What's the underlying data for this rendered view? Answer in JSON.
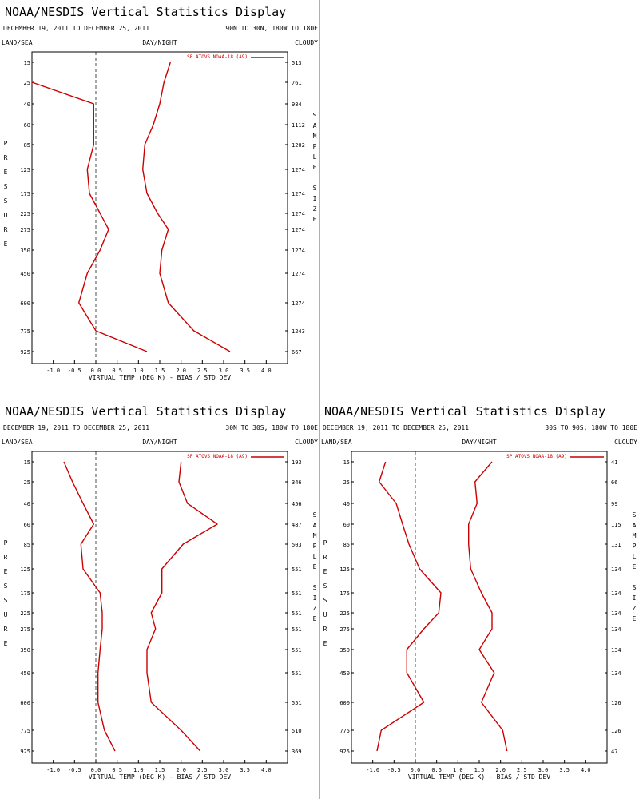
{
  "chart_data": [
    {
      "type": "line",
      "title": "NOAA/NESDIS Vertical Statistics Display",
      "date_range": "DECEMBER 19, 2011 TO DECEMBER 25, 2011",
      "region": "90N TO 30N, 180W TO 180E",
      "left_header": "LAND/SEA",
      "center_header": "DAY/NIGHT",
      "right_header": "CLOUDY",
      "xlabel": "VIRTUAL TEMP (DEG K) - BIAS / STD DEV",
      "ylabel_left": "PRESSURE",
      "ylabel_right": "SAMPLE SIZE",
      "xlim": [
        -1.5,
        4.5
      ],
      "x_ticks": [
        "-1.0",
        "-0.5",
        "0.0",
        "0.5",
        "1.0",
        "1.5",
        "2.0",
        "2.5",
        "3.0",
        "3.5",
        "4.0"
      ],
      "pressure_levels": [
        "15",
        "25",
        "40",
        "60",
        "85",
        "125",
        "175",
        "225",
        "275",
        "350",
        "450",
        "600",
        "775",
        "925"
      ],
      "sample_sizes": [
        "513",
        "761",
        "984",
        "1112",
        "1202",
        "1274",
        "1274",
        "1274",
        "1274",
        "1274",
        "1274",
        "1274",
        "1243",
        "667"
      ],
      "legend": "SP ATOVS NOAA-18 (A9)",
      "series": [
        {
          "name": "BIAS",
          "values": [
            null,
            -1.5,
            -0.05,
            -0.05,
            -0.05,
            -0.2,
            -0.15,
            0.1,
            0.3,
            0.1,
            -0.2,
            -0.4,
            0.0,
            1.2
          ]
        },
        {
          "name": "STD DEV",
          "values": [
            1.75,
            1.6,
            1.5,
            1.35,
            1.15,
            1.1,
            1.2,
            1.45,
            1.7,
            1.55,
            1.5,
            1.7,
            2.3,
            3.15
          ]
        }
      ]
    },
    {
      "type": "line",
      "title": "NOAA/NESDIS Vertical Statistics Display",
      "date_range": "DECEMBER 19, 2011 TO DECEMBER 25, 2011",
      "region": "30N TO 30S, 180W TO 180E",
      "left_header": "LAND/SEA",
      "center_header": "DAY/NIGHT",
      "right_header": "CLOUDY",
      "xlabel": "VIRTUAL TEMP (DEG K) - BIAS / STD DEV",
      "ylabel_left": "PRESSURE",
      "ylabel_right": "SAMPLE SIZE",
      "xlim": [
        -1.5,
        4.5
      ],
      "x_ticks": [
        "-1.0",
        "-0.5",
        "0.0",
        "0.5",
        "1.0",
        "1.5",
        "2.0",
        "2.5",
        "3.0",
        "3.5",
        "4.0"
      ],
      "pressure_levels": [
        "15",
        "25",
        "40",
        "60",
        "85",
        "125",
        "175",
        "225",
        "275",
        "350",
        "450",
        "600",
        "775",
        "925"
      ],
      "sample_sizes": [
        "193",
        "346",
        "456",
        "487",
        "503",
        "551",
        "551",
        "551",
        "551",
        "551",
        "551",
        "551",
        "510",
        "369"
      ],
      "legend": "SP ATOVS NOAA-18 (A9)",
      "series": [
        {
          "name": "BIAS",
          "values": [
            -0.75,
            -0.55,
            -0.3,
            -0.05,
            -0.35,
            -0.3,
            0.1,
            0.15,
            0.15,
            0.1,
            0.05,
            0.05,
            0.2,
            0.45
          ]
        },
        {
          "name": "STD DEV",
          "values": [
            2.0,
            1.95,
            2.15,
            2.85,
            2.05,
            1.55,
            1.55,
            1.3,
            1.4,
            1.2,
            1.2,
            1.3,
            2.0,
            2.45
          ]
        }
      ]
    },
    {
      "type": "line",
      "title": "NOAA/NESDIS Vertical Statistics Display",
      "date_range": "DECEMBER 19, 2011 TO DECEMBER 25, 2011",
      "region": "30S TO 90S, 180W TO 180E",
      "left_header": "LAND/SEA",
      "center_header": "DAY/NIGHT",
      "right_header": "CLOUDY",
      "xlabel": "VIRTUAL TEMP (DEG K) - BIAS / STD DEV",
      "ylabel_left": "PRESSURE",
      "ylabel_right": "SAMPLE SIZE",
      "xlim": [
        -1.5,
        4.5
      ],
      "x_ticks": [
        "-1.0",
        "-0.5",
        "0.0",
        "0.5",
        "1.0",
        "1.5",
        "2.0",
        "2.5",
        "3.0",
        "3.5",
        "4.0"
      ],
      "pressure_levels": [
        "15",
        "25",
        "40",
        "60",
        "85",
        "125",
        "175",
        "225",
        "275",
        "350",
        "450",
        "600",
        "775",
        "925"
      ],
      "sample_sizes": [
        "41",
        "66",
        "99",
        "115",
        "131",
        "134",
        "134",
        "134",
        "134",
        "134",
        "134",
        "126",
        "126",
        "47"
      ],
      "legend": "SP ATOVS NOAA-18 (A9)",
      "series": [
        {
          "name": "BIAS",
          "values": [
            -0.7,
            -0.85,
            -0.45,
            -0.3,
            -0.15,
            0.1,
            0.6,
            0.55,
            0.2,
            -0.2,
            -0.2,
            0.2,
            -0.8,
            -0.9
          ]
        },
        {
          "name": "STD DEV",
          "values": [
            1.8,
            1.4,
            1.45,
            1.25,
            1.25,
            1.3,
            1.55,
            1.8,
            1.8,
            1.5,
            1.85,
            1.55,
            2.05,
            2.15
          ]
        }
      ]
    }
  ]
}
